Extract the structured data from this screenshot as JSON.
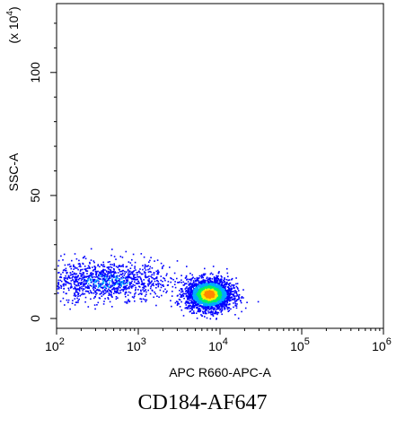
{
  "caption": "CD184-AF647",
  "chart_data": {
    "type": "scatter",
    "xlabel": "APC R660-APC-A",
    "ylabel": "SSC-A",
    "y_multiplier_label": "(x 10",
    "y_multiplier_exponent": "4",
    "x_scale": "log",
    "xlim": [
      100,
      1000000
    ],
    "x_ticks": [
      {
        "value": 100,
        "base": "10",
        "exp": "2"
      },
      {
        "value": 1000,
        "base": "10",
        "exp": "3"
      },
      {
        "value": 10000,
        "base": "10",
        "exp": "4"
      },
      {
        "value": 100000,
        "base": "10",
        "exp": "5"
      },
      {
        "value": 1000000,
        "base": "10",
        "exp": "6"
      }
    ],
    "ylim": [
      -4,
      128
    ],
    "y_ticks": [
      {
        "value": 0,
        "label": "0"
      },
      {
        "value": 50,
        "label": "50"
      },
      {
        "value": 100,
        "label": "100"
      }
    ],
    "grid": false,
    "populations": [
      {
        "name": "low",
        "x_center_log10": 2.6,
        "x_spread_log10": 0.42,
        "y_center": 15.5,
        "y_spread": 4.0,
        "count": 1200
      },
      {
        "name": "main",
        "x_center_log10": 3.86,
        "x_spread_log10": 0.14,
        "y_center": 10.0,
        "y_spread": 3.2,
        "count": 2600
      }
    ],
    "density_colors": [
      "#0000ff",
      "#00aaff",
      "#00ee66",
      "#ffee00",
      "#ff8800"
    ]
  }
}
